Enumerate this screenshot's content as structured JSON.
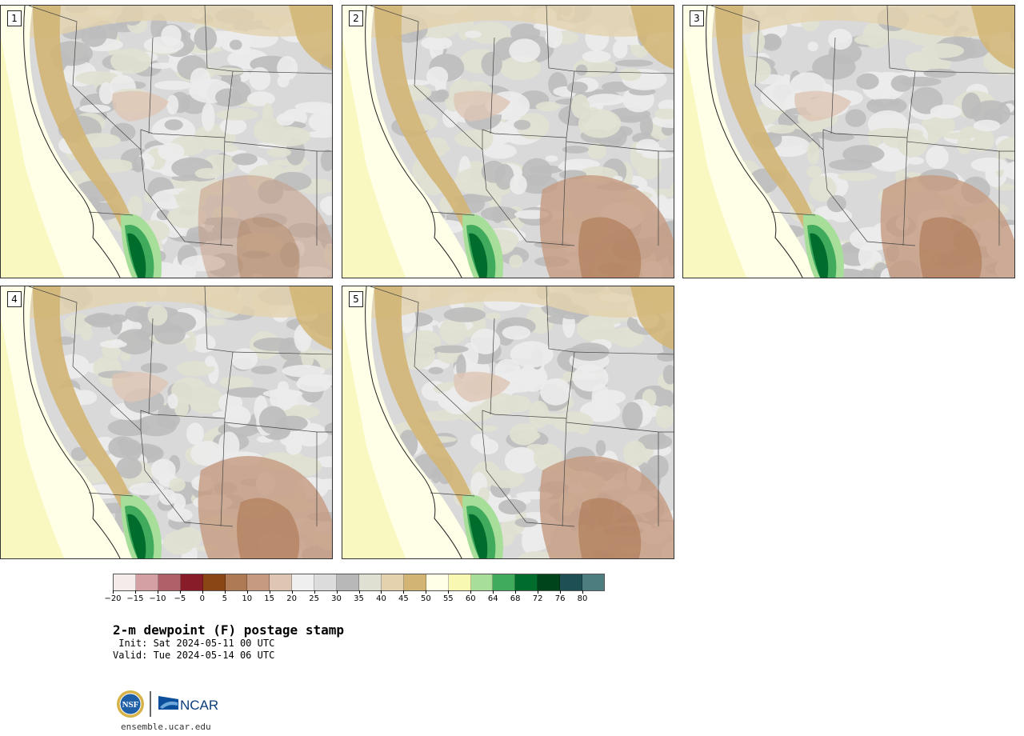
{
  "panels": [
    {
      "label": "1"
    },
    {
      "label": "2"
    },
    {
      "label": "3"
    },
    {
      "label": "4"
    },
    {
      "label": "5"
    }
  ],
  "colorbar": {
    "colors": [
      "#f4ebeb",
      "#d4a0a4",
      "#b06068",
      "#881c28",
      "#8a4614",
      "#ad7a55",
      "#c69a80",
      "#dfc5b4",
      "#efefef",
      "#dcdcdc",
      "#b8b8b8",
      "#e0e0d2",
      "#e3d2ad",
      "#d2b574",
      "#fffee6",
      "#f9f8b2",
      "#a7de9a",
      "#41ab5d",
      "#006d2c",
      "#00441b",
      "#1d4f55",
      "#4e7d80"
    ],
    "tick_labels": [
      "−20",
      "−15",
      "−10",
      "−5",
      "0",
      "5",
      "10",
      "15",
      "20",
      "25",
      "30",
      "35",
      "40",
      "45",
      "50",
      "55",
      "60",
      "64",
      "68",
      "72",
      "76",
      "80"
    ]
  },
  "title": "2-m dewpoint (F) postage stamp",
  "init": " Init: Sat 2024-05-11 00 UTC",
  "valid": "Valid: Tue 2024-05-14 06 UTC",
  "logo": {
    "nsf_text": "NSF",
    "ncar_text": "NCAR"
  },
  "url": "ensemble.ucar.edu"
}
